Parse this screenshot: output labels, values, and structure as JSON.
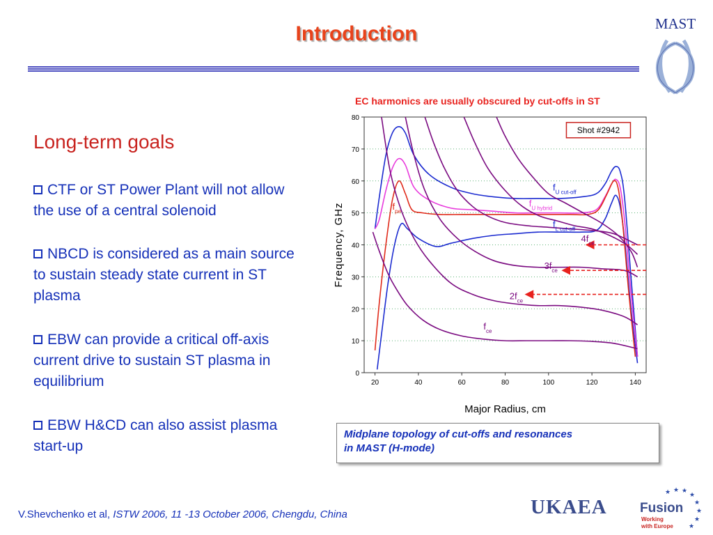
{
  "slide": {
    "title": "Introduction",
    "logo": {
      "text": "MAST"
    },
    "heading": "Long-term goals",
    "bullets": [
      "CTF or ST Power Plant will not allow the use of a central solenoid",
      "NBCD is considered as a main source to sustain steady state current in ST plasma",
      "EBW can provide a critical off-axis current drive to sustain ST plasma in equilibrium",
      "EBW H&CD can also assist plasma start-up"
    ],
    "chart_header": "EC harmonics are usually obscured by cut-offs in ST",
    "caption_line1": "Midplane topology of cut-offs and resonances",
    "caption_line2": "in MAST  (H-mode)",
    "footer": {
      "author": "V.Shevchenko et al, ",
      "venue": "ISTW 2006, 11 -13 October 2006, Chengdu, China"
    },
    "org_logo": "UKAEA",
    "fusion_logo": {
      "name": "Fusion",
      "sub1": "Working",
      "sub2": "with Europe"
    }
  },
  "colors": {
    "title": "#e8421a",
    "text": "#1530b8",
    "heading": "#c8221e",
    "blue_curve": "#1a2ad0",
    "magenta_curve": "#e83adc",
    "red_curve": "#e02a1a",
    "purple_curve": "#7a0a80"
  },
  "chart_data": {
    "type": "line",
    "title": "",
    "xlabel": "Major Radius, cm",
    "ylabel": "Frequency, GHz",
    "xlim": [
      15,
      145
    ],
    "ylim": [
      0,
      80
    ],
    "xticks": [
      20,
      40,
      60,
      80,
      100,
      120,
      140
    ],
    "yticks": [
      0,
      10,
      20,
      30,
      40,
      50,
      60,
      70,
      80
    ],
    "grid": "horizontal-dotted",
    "annotation_box": "Shot #2942",
    "series": [
      {
        "color": "blue",
        "x": [
          20,
          22,
          25,
          28,
          31,
          34,
          38,
          45,
          55,
          65,
          75,
          85,
          95,
          105,
          115,
          122,
          126,
          129,
          131,
          133,
          135,
          138,
          141
        ],
        "y": [
          45,
          55,
          68,
          75,
          77,
          75,
          68,
          62,
          58,
          56,
          55,
          54.5,
          54.5,
          54.5,
          55,
          56,
          59,
          63,
          64.5,
          63,
          55,
          30,
          5
        ]
      },
      {
        "color": "blue",
        "x": [
          21,
          23,
          26,
          29,
          32,
          35,
          40,
          48,
          55,
          65,
          75,
          85,
          95,
          105,
          115,
          122,
          126,
          129,
          131,
          133,
          135,
          138,
          141
        ],
        "y": [
          1,
          12,
          28,
          40,
          46.5,
          45,
          42,
          39.5,
          40.5,
          42,
          43,
          43.5,
          44,
          44,
          44,
          44.5,
          48,
          53,
          55.5,
          52,
          42,
          20,
          3
        ]
      },
      {
        "color": "magenta",
        "x": [
          20,
          22,
          25,
          28,
          31,
          34,
          38,
          45,
          55,
          65,
          75,
          85,
          95,
          105,
          115,
          122,
          126,
          129,
          131,
          133,
          135,
          138,
          141
        ],
        "y": [
          45,
          48,
          57,
          64,
          67,
          65,
          58,
          54,
          51.5,
          51,
          50.5,
          50,
          50,
          50,
          50,
          51,
          55,
          59,
          60.5,
          58,
          48,
          25,
          5
        ]
      },
      {
        "color": "red",
        "x": [
          20,
          22,
          25,
          28,
          31,
          34,
          37,
          42,
          50,
          60,
          70,
          80,
          90,
          100,
          110,
          118,
          123,
          127,
          130,
          132,
          134,
          137,
          140
        ],
        "y": [
          7,
          22,
          40,
          54,
          60,
          56,
          51,
          50,
          49.5,
          49.5,
          49.5,
          49.5,
          49.5,
          49.5,
          49.5,
          49.5,
          51,
          56,
          60,
          58,
          48,
          25,
          5
        ]
      },
      {
        "color": "purple",
        "label": "fce",
        "x": [
          19,
          22,
          26,
          30,
          35,
          42,
          50,
          60,
          70,
          80,
          90,
          100,
          110,
          120,
          130,
          141
        ],
        "y": [
          44,
          38,
          31,
          26,
          21,
          16.5,
          13.5,
          11.5,
          10.5,
          10,
          10,
          10,
          10,
          9.8,
          9.2,
          7.5
        ]
      },
      {
        "color": "purple",
        "label": "2fce",
        "x": [
          23,
          27,
          32,
          38,
          45,
          55,
          65,
          75,
          85,
          95,
          105,
          115,
          125,
          135,
          141
        ],
        "y": [
          80,
          63,
          51,
          42,
          35,
          28,
          24.5,
          22.5,
          21.5,
          21,
          21,
          20.5,
          19.5,
          17.5,
          15
        ]
      },
      {
        "color": "purple",
        "label": "3fce",
        "x": [
          34,
          38,
          43,
          50,
          58,
          66,
          75,
          85,
          95,
          105,
          115,
          125,
          135,
          141
        ],
        "y": [
          80,
          68,
          57,
          48,
          42,
          38,
          35,
          33.5,
          33,
          33,
          33,
          32.5,
          32,
          30
        ]
      },
      {
        "color": "purple",
        "label": "4fce",
        "x": [
          43,
          47,
          52,
          58,
          65,
          72,
          80,
          90,
          100,
          110,
          120,
          130,
          141
        ],
        "y": [
          80,
          72,
          64,
          57,
          52,
          49,
          47,
          46,
          45.5,
          45,
          44.5,
          43.5,
          40
        ]
      },
      {
        "color": "purple",
        "x": [
          61,
          66,
          72,
          80,
          88,
          96,
          104,
          112,
          120,
          128,
          136,
          141
        ],
        "y": [
          80,
          72,
          64,
          57,
          52,
          49,
          47.5,
          46,
          45,
          43,
          40,
          37
        ]
      },
      {
        "color": "purple",
        "x": [
          76,
          80,
          86,
          93,
          100,
          108,
          116,
          124,
          132,
          138,
          141
        ],
        "y": [
          80,
          74,
          67,
          61,
          56,
          53,
          50,
          47,
          43,
          38,
          33
        ]
      }
    ],
    "labels": [
      {
        "main": "f",
        "sub": "U cut-off",
        "x": 102,
        "y": 57,
        "color": "blue"
      },
      {
        "main": "f",
        "sub": "U hybrid",
        "x": 91,
        "y": 52,
        "color": "magenta"
      },
      {
        "main": "f",
        "sub": "pe",
        "x": 28,
        "y": 51,
        "color": "red"
      },
      {
        "main": "f",
        "sub": "L cut-off",
        "x": 102,
        "y": 45.5,
        "color": "blue"
      },
      {
        "main": "4f",
        "sub": "ce",
        "x": 115,
        "y": 41,
        "color": "purple"
      },
      {
        "main": "3f",
        "sub": "ce",
        "x": 98,
        "y": 32.5,
        "color": "purple"
      },
      {
        "main": "2f",
        "sub": "ce",
        "x": 82,
        "y": 23,
        "color": "purple"
      },
      {
        "main": "f",
        "sub": "ce",
        "x": 70,
        "y": 13.5,
        "color": "purple"
      }
    ],
    "arrows": [
      {
        "from_x": 145,
        "to_x": 118,
        "y": 40
      },
      {
        "from_x": 145,
        "to_x": 107,
        "y": 32
      },
      {
        "from_x": 145,
        "to_x": 90,
        "y": 24.5
      }
    ]
  }
}
